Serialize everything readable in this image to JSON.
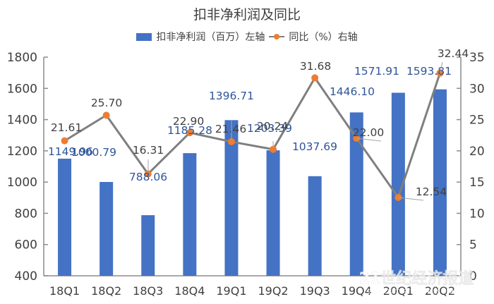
{
  "chart_data": {
    "type": "bar+line",
    "title": "扣非净利润及同比",
    "categories": [
      "18Q1",
      "18Q2",
      "18Q3",
      "18Q4",
      "19Q1",
      "19Q2",
      "19Q3",
      "19Q4",
      "20Q1",
      "20Q2"
    ],
    "series": [
      {
        "name": "扣非净利润（百万）左轴",
        "type": "bar",
        "axis": "left",
        "color": "#4472C4",
        "values": [
          1149.96,
          1000.79,
          788.06,
          1185.28,
          1396.71,
          1203.39,
          1037.69,
          1446.1,
          1571.91,
          1593.81
        ],
        "labels": [
          "1149.96",
          "1000.79",
          "788.06",
          "1185.28",
          "1396.71",
          "1203.39",
          "1037.69",
          "1446.10",
          "1571.91",
          "1593.81"
        ]
      },
      {
        "name": "同比（%）右轴",
        "type": "line",
        "axis": "right",
        "line_color": "#7F7F7F",
        "marker_color": "#ED7D31",
        "values": [
          21.61,
          25.7,
          16.31,
          22.9,
          21.46,
          20.24,
          31.68,
          22.0,
          12.54,
          32.44
        ],
        "labels": [
          "21.61",
          "25.70",
          "16.31",
          "22.90",
          "21.46",
          "20.24",
          "31.68",
          "22.00",
          "12.54",
          "32.44"
        ]
      }
    ],
    "left_axis": {
      "ylim": [
        400,
        1800
      ],
      "ticks": [
        "400",
        "600",
        "800",
        "1000",
        "1200",
        "1400",
        "1600",
        "1800"
      ]
    },
    "right_axis": {
      "ylim": [
        0,
        35
      ],
      "ticks": [
        "0",
        "5",
        "10",
        "15",
        "20",
        "25",
        "30",
        "35"
      ]
    },
    "xlabel": "",
    "ylabel": "",
    "grid": false,
    "legend_position": "top"
  },
  "legend": {
    "bar_label": "扣非净利润（百万）左轴",
    "line_label": "同比（%）右轴"
  },
  "watermark": {
    "main": "21世纪经济报道",
    "sub": "21ST CENTURY BUSINESS HERALD"
  }
}
